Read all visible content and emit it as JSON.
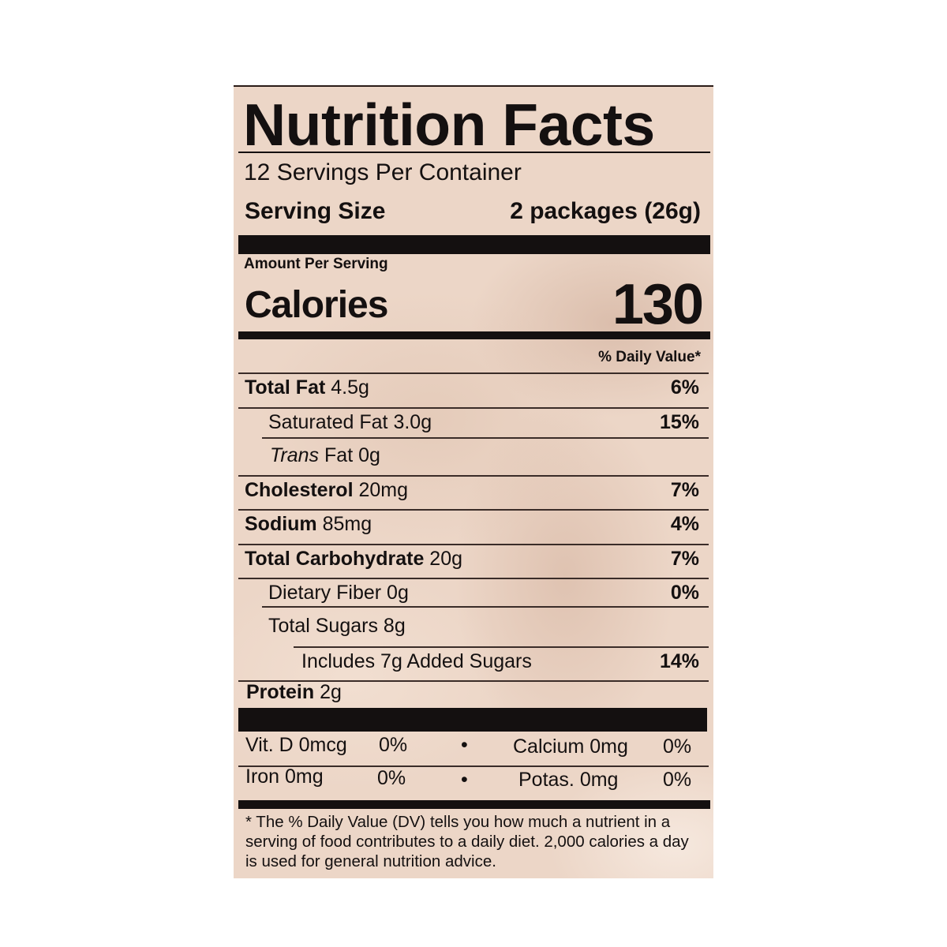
{
  "title": "Nutrition Facts",
  "servings_per_container": "12 Servings Per Container",
  "serving_size": {
    "label": "Serving Size",
    "value": "2 packages (26g)"
  },
  "amount_per_serving": "Amount Per Serving",
  "calories": {
    "label": "Calories",
    "value": "130"
  },
  "daily_value_header": "% Daily Value*",
  "nutrients": [
    {
      "label": "Total Fat",
      "amount": "4.5g",
      "dv": "6%"
    },
    {
      "label": "Saturated Fat",
      "amount": "3.0g",
      "dv": "15%"
    },
    {
      "label_italic": "Trans",
      "label": "Fat",
      "amount": "0g",
      "dv": ""
    },
    {
      "label": "Cholesterol",
      "amount": "20mg",
      "dv": "7%"
    },
    {
      "label": "Sodium",
      "amount": "85mg",
      "dv": "4%"
    },
    {
      "label": "Total Carbohydrate",
      "amount": "20g",
      "dv": "7%"
    },
    {
      "label": "Dietary Fiber",
      "amount": "0g",
      "dv": "0%"
    },
    {
      "label": "Total Sugars",
      "amount": "8g",
      "dv": ""
    },
    {
      "label": "Includes 7g Added Sugars",
      "amount": "",
      "dv": "14%"
    },
    {
      "label": "Protein",
      "amount": "2g",
      "dv": ""
    }
  ],
  "vitamins": [
    {
      "label": "Vit. D 0mcg",
      "dv": "0%"
    },
    {
      "label": "Calcium 0mg",
      "dv": "0%"
    },
    {
      "label": "Iron 0mg",
      "dv": "0%"
    },
    {
      "label": "Potas. 0mg",
      "dv": "0%"
    }
  ],
  "separator": "•",
  "footnote": "* The % Daily Value (DV) tells you how much a nutrient in a serving of food contributes to a daily diet. 2,000 calories a day is used for general nutrition advice."
}
